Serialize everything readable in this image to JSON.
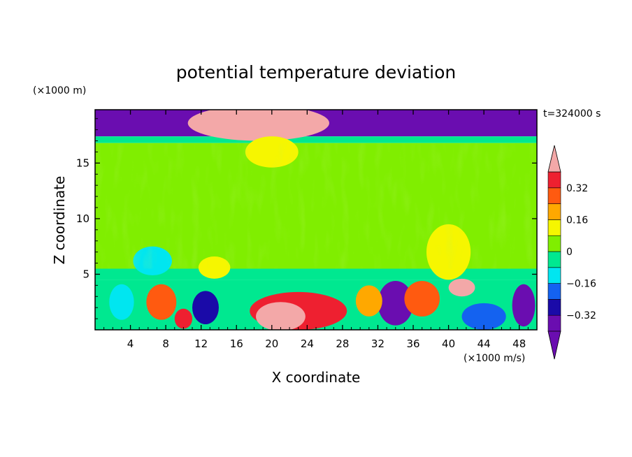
{
  "chart_data": {
    "type": "heatmap",
    "title": "potential temperature deviation",
    "xlabel": "X coordinate",
    "ylabel": "Z coordinate",
    "x_unit": "(×1000 m/s)",
    "y_unit": "(×1000 m)",
    "time_label": "t=324000 s",
    "xlim": [
      0,
      50
    ],
    "ylim": [
      0,
      19.8
    ],
    "x_ticks": [
      4,
      8,
      12,
      16,
      20,
      24,
      28,
      32,
      36,
      40,
      44,
      48
    ],
    "y_ticks": [
      5,
      10,
      15
    ],
    "colorbar": {
      "levels": [
        -0.4,
        -0.32,
        -0.24,
        -0.16,
        -0.08,
        0,
        0.08,
        0.16,
        0.24,
        0.32,
        0.4
      ],
      "tick_labels": [
        "0.32",
        "0.16",
        "0",
        "−0.16",
        "−0.32"
      ],
      "tick_values": [
        0.32,
        0.16,
        0,
        -0.16,
        -0.32
      ],
      "colors": [
        "#6a0db0",
        "#1a0aa8",
        "#1462f0",
        "#00e6f0",
        "#00e890",
        "#80ee00",
        "#f6f600",
        "#ffa800",
        "#ff5a10",
        "#ee2030",
        "#f3a8a8"
      ],
      "extend": "both"
    },
    "regions": [
      {
        "kind": "band",
        "z": [
          17.4,
          19.8
        ],
        "value": -0.45
      },
      {
        "kind": "band",
        "z": [
          16.8,
          17.4
        ],
        "value": -0.02
      },
      {
        "kind": "band",
        "z": [
          5.5,
          16.8
        ],
        "value": 0.04
      },
      {
        "kind": "band",
        "z": [
          4.5,
          5.5
        ],
        "value": -0.02
      },
      {
        "kind": "band",
        "z": [
          0,
          4.5
        ],
        "value": -0.04
      },
      {
        "kind": "blob",
        "x": 18.5,
        "z": 18.6,
        "rx": 8.0,
        "rz": 1.6,
        "value": 0.45
      },
      {
        "kind": "blob",
        "x": 20.0,
        "z": 16.0,
        "rx": 3.0,
        "rz": 1.4,
        "value": 0.12
      },
      {
        "kind": "blob",
        "x": 6.5,
        "z": 6.2,
        "rx": 2.2,
        "rz": 1.3,
        "value": -0.14
      },
      {
        "kind": "blob",
        "x": 40.0,
        "z": 7.0,
        "rx": 2.5,
        "rz": 2.5,
        "value": 0.12
      },
      {
        "kind": "blob",
        "x": 13.5,
        "z": 5.6,
        "rx": 1.8,
        "rz": 1.0,
        "value": 0.12
      },
      {
        "kind": "blob",
        "x": 23.0,
        "z": 1.7,
        "rx": 5.5,
        "rz": 1.7,
        "value": 0.35
      },
      {
        "kind": "blob",
        "x": 21.0,
        "z": 1.2,
        "rx": 2.8,
        "rz": 1.3,
        "value": 0.45
      },
      {
        "kind": "blob",
        "x": 7.5,
        "z": 2.5,
        "rx": 1.7,
        "rz": 1.6,
        "value": 0.25
      },
      {
        "kind": "blob",
        "x": 10.0,
        "z": 1.0,
        "rx": 1.0,
        "rz": 0.9,
        "value": 0.38
      },
      {
        "kind": "blob",
        "x": 34.0,
        "z": 2.4,
        "rx": 2.0,
        "rz": 2.0,
        "value": -0.4
      },
      {
        "kind": "blob",
        "x": 37.0,
        "z": 2.8,
        "rx": 2.0,
        "rz": 1.6,
        "value": 0.3
      },
      {
        "kind": "blob",
        "x": 31.0,
        "z": 2.6,
        "rx": 1.5,
        "rz": 1.4,
        "value": 0.2
      },
      {
        "kind": "blob",
        "x": 41.5,
        "z": 3.8,
        "rx": 1.5,
        "rz": 0.8,
        "value": 0.45
      },
      {
        "kind": "blob",
        "x": 48.5,
        "z": 2.2,
        "rx": 1.3,
        "rz": 1.9,
        "value": -0.36
      },
      {
        "kind": "blob",
        "x": 12.5,
        "z": 2.0,
        "rx": 1.5,
        "rz": 1.5,
        "value": -0.3
      },
      {
        "kind": "blob",
        "x": 3.0,
        "z": 2.5,
        "rx": 1.4,
        "rz": 1.6,
        "value": -0.1
      },
      {
        "kind": "blob",
        "x": 44.0,
        "z": 1.2,
        "rx": 2.5,
        "rz": 1.2,
        "value": -0.2
      }
    ]
  }
}
